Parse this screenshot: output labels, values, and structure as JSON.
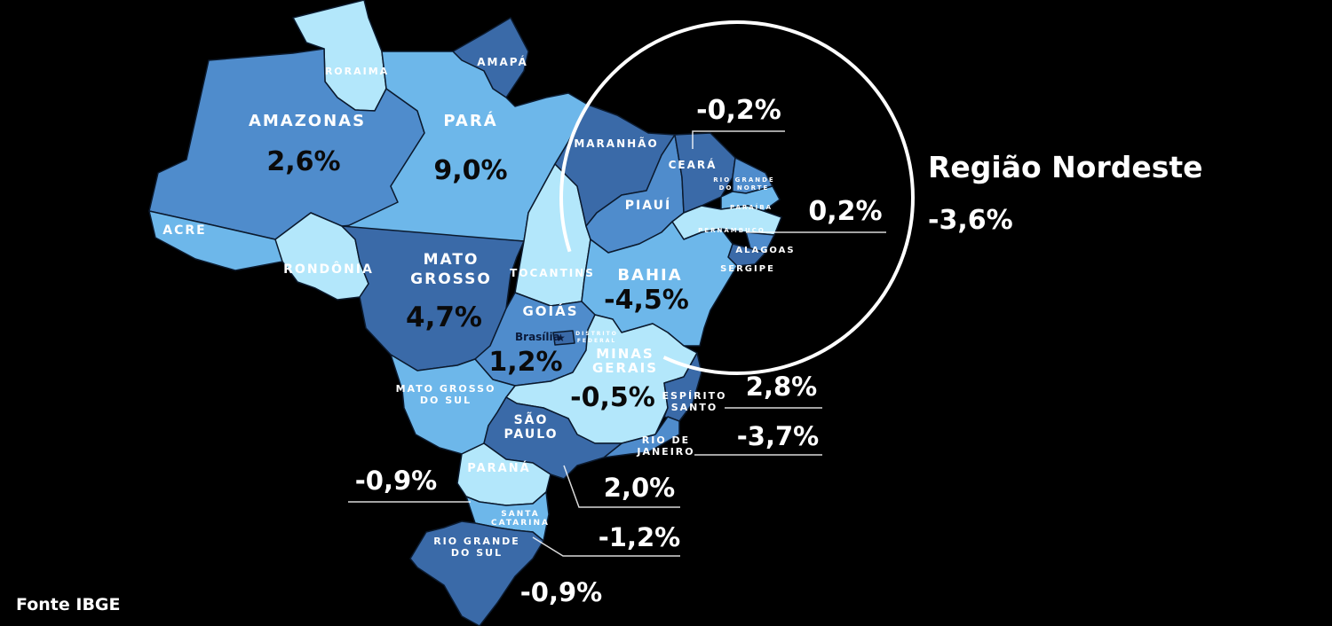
{
  "colors": {
    "background": "#000000",
    "dark": "#3a6aa8",
    "medium": "#4f8ccc",
    "light": "#6db7ea",
    "pale": "#b3e7fb",
    "value_on_map": "#0a0a0a",
    "value_outside": "#ffffff",
    "label_on_dark": "#ffffff"
  },
  "states": [
    {
      "id": "roraima",
      "name": "RORAIMA",
      "value": "",
      "shade": "pale"
    },
    {
      "id": "amapa",
      "name": "AMAPÁ",
      "value": "",
      "shade": "dark"
    },
    {
      "id": "amazonas",
      "name": "AMAZONAS",
      "value": "2,6%",
      "shade": "medium"
    },
    {
      "id": "para",
      "name": "PARÁ",
      "value": "9,0%",
      "shade": "light"
    },
    {
      "id": "acre",
      "name": "ACRE",
      "value": "",
      "shade": "light"
    },
    {
      "id": "rondonia",
      "name": "RONDÔNIA",
      "value": "",
      "shade": "pale"
    },
    {
      "id": "mato-grosso",
      "name": [
        "MATO",
        "GROSSO"
      ],
      "value": "4,7%",
      "shade": "dark"
    },
    {
      "id": "tocantins",
      "name": "TOCANTINS",
      "value": "",
      "shade": "pale"
    },
    {
      "id": "maranhao",
      "name": "MARANHÃO",
      "value": "",
      "shade": "dark"
    },
    {
      "id": "piaui",
      "name": "PIAUÍ",
      "value": "",
      "shade": "medium"
    },
    {
      "id": "ceara",
      "name": "CEARÁ",
      "value": "-0,2%",
      "shade": "dark"
    },
    {
      "id": "rio-grande-do-norte",
      "name": [
        "RIO GRANDE",
        "DO NORTE"
      ],
      "value": "",
      "shade": "medium"
    },
    {
      "id": "paraiba",
      "name": "PARAÍBA",
      "value": "",
      "shade": "light"
    },
    {
      "id": "pernambuco",
      "name": "PERNAMBUCO",
      "value": "0,2%",
      "shade": "pale"
    },
    {
      "id": "alagoas",
      "name": "ALAGOAS",
      "value": "",
      "shade": "medium"
    },
    {
      "id": "sergipe",
      "name": "SERGIPE",
      "value": "",
      "shade": "dark"
    },
    {
      "id": "bahia",
      "name": "BAHIA",
      "value": "-4,5%",
      "shade": "light"
    },
    {
      "id": "goias",
      "name": "GOIÁS",
      "value": "1,2%",
      "shade": "medium"
    },
    {
      "id": "distrito-federal",
      "name": [
        "DISTRITO",
        "FEDERAL"
      ],
      "value": "",
      "shade": "dark"
    },
    {
      "id": "minas-gerais",
      "name": [
        "MINAS",
        "GERAIS"
      ],
      "value": "-0,5%",
      "shade": "pale"
    },
    {
      "id": "mato-grosso-do-sul",
      "name": [
        "MATO GROSSO",
        "DO SUL"
      ],
      "value": "",
      "shade": "light"
    },
    {
      "id": "espirito-santo",
      "name": [
        "ESPÍRITO",
        "SANTO"
      ],
      "value": "2,8%",
      "shade": "dark"
    },
    {
      "id": "rio-de-janeiro",
      "name": [
        "RIO DE",
        "JANEIRO"
      ],
      "value": "-3,7%",
      "shade": "medium"
    },
    {
      "id": "sao-paulo",
      "name": [
        "SÃO",
        "PAULO"
      ],
      "value": "2,0%",
      "shade": "dark"
    },
    {
      "id": "parana",
      "name": "PARANÁ",
      "value": "-0,9%",
      "shade": "pale"
    },
    {
      "id": "santa-catarina",
      "name": [
        "SANTA",
        "CATARINA"
      ],
      "value": "-1,2%",
      "shade": "light"
    },
    {
      "id": "rio-grande-do-sul",
      "name": [
        "RIO GRANDE",
        "DO SUL"
      ],
      "value": "-0,9%",
      "shade": "dark"
    }
  ],
  "capital": {
    "name": "Brasília",
    "icon": "star-icon"
  },
  "region": {
    "title": "Região Nordeste",
    "value": "-3,6%"
  },
  "source": "Fonte IBGE"
}
